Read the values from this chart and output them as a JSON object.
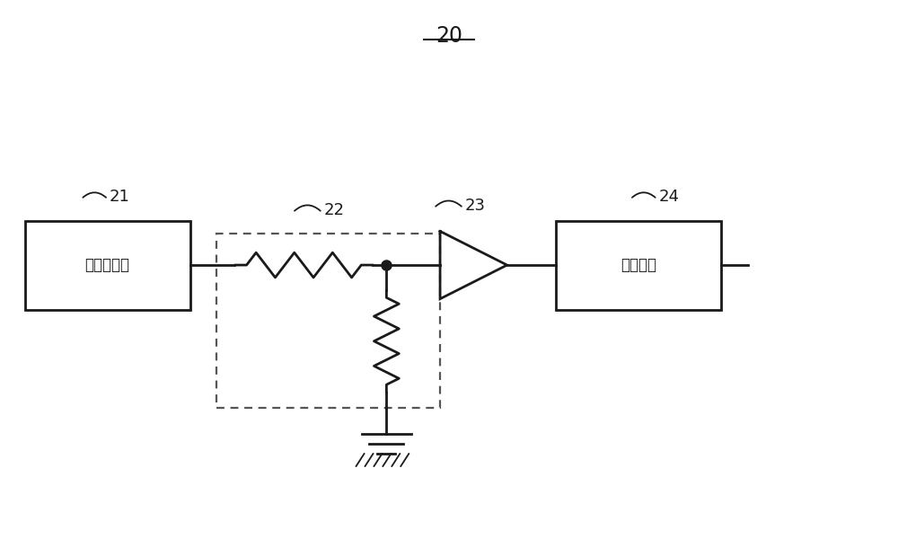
{
  "title": "20",
  "bg_color": "#ffffff",
  "label_21": "21",
  "label_22": "22",
  "label_23": "23",
  "label_24": "24",
  "box21_text": "标准信号源",
  "box24_text": "接收电路",
  "line_color": "#1a1a1a",
  "dot_color": "#1a1a1a",
  "dashed_box_color": "#555555"
}
